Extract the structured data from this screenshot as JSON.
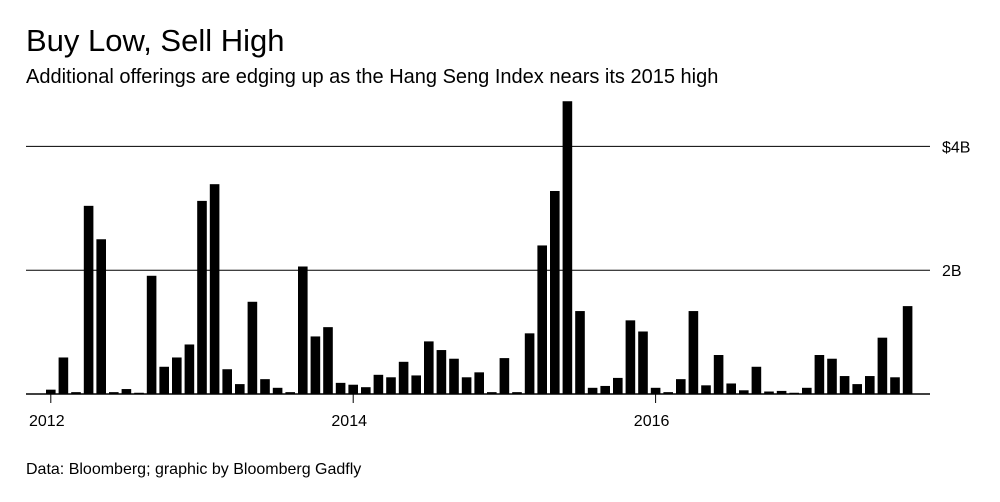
{
  "header": {
    "title": "Buy Low, Sell High",
    "subtitle": "Additional offerings are edging up as the Hang Seng Index nears its 2015 high"
  },
  "footer": {
    "source": "Data: Bloomberg; graphic by Bloomberg Gadfly"
  },
  "chart_data": {
    "type": "bar",
    "unit": "B",
    "y_ticks": [
      {
        "value": 2,
        "label": "2B"
      },
      {
        "value": 4,
        "label": "$4B"
      }
    ],
    "ylim": [
      0,
      4.75
    ],
    "grid": true,
    "x_ticks": [
      {
        "index": 0,
        "label": "2012"
      },
      {
        "index": 24,
        "label": "2014"
      },
      {
        "index": 48,
        "label": "2016"
      }
    ],
    "bar_color": "#000000",
    "values": [
      0.07,
      0.59,
      0.03,
      3.04,
      2.5,
      0.03,
      0.08,
      0.02,
      1.91,
      0.44,
      0.59,
      0.8,
      3.12,
      3.39,
      0.4,
      0.16,
      1.49,
      0.24,
      0.1,
      0.03,
      2.06,
      0.93,
      1.08,
      0.18,
      0.15,
      0.11,
      0.31,
      0.27,
      0.52,
      0.3,
      0.85,
      0.71,
      0.57,
      0.27,
      0.35,
      0.03,
      0.58,
      0.03,
      0.98,
      2.4,
      3.28,
      4.73,
      1.34,
      0.1,
      0.13,
      0.26,
      1.19,
      1.01,
      0.1,
      0.03,
      0.24,
      1.34,
      0.14,
      0.63,
      0.17,
      0.06,
      0.44,
      0.04,
      0.05,
      0.02,
      0.1,
      0.63,
      0.57,
      0.29,
      0.16,
      0.29,
      0.91,
      0.27,
      1.42
    ]
  }
}
